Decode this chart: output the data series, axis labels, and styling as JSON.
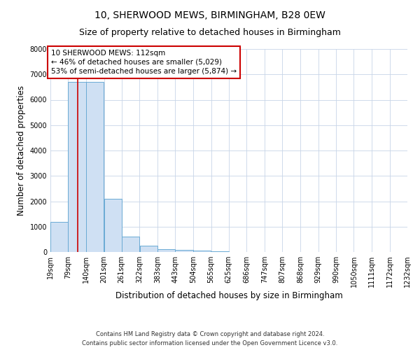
{
  "title_line1": "10, SHERWOOD MEWS, BIRMINGHAM, B28 0EW",
  "title_line2": "Size of property relative to detached houses in Birmingham",
  "xlabel": "Distribution of detached houses by size in Birmingham",
  "ylabel": "Number of detached properties",
  "footer_line1": "Contains HM Land Registry data © Crown copyright and database right 2024.",
  "footer_line2": "Contains public sector information licensed under the Open Government Licence v3.0.",
  "annotation_line1": "10 SHERWOOD MEWS: 112sqm",
  "annotation_line2": "← 46% of detached houses are smaller (5,029)",
  "annotation_line3": "53% of semi-detached houses are larger (5,874) →",
  "property_size": 112,
  "bin_edges": [
    19,
    79,
    140,
    201,
    261,
    322,
    383,
    443,
    504,
    565,
    625,
    686,
    747,
    807,
    868,
    929,
    990,
    1050,
    1111,
    1172,
    1232
  ],
  "bar_values": [
    1200,
    6700,
    6700,
    2100,
    620,
    250,
    120,
    75,
    50,
    30,
    0,
    0,
    0,
    0,
    0,
    0,
    0,
    0,
    0,
    0
  ],
  "bar_color": "#cfe0f3",
  "bar_edge_color": "#6aaad4",
  "vline_color": "#cc0000",
  "vline_x": 112,
  "annotation_box_color": "#cc0000",
  "ylim": [
    0,
    8000
  ],
  "yticks": [
    0,
    1000,
    2000,
    3000,
    4000,
    5000,
    6000,
    7000,
    8000
  ],
  "grid_color": "#c8d4e8",
  "title_fontsize": 10,
  "subtitle_fontsize": 9,
  "axis_label_fontsize": 8.5,
  "tick_fontsize": 7,
  "annotation_fontsize": 7.5,
  "figure_width": 6.0,
  "figure_height": 5.0,
  "figure_dpi": 100
}
